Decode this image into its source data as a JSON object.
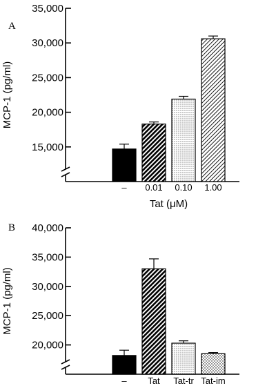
{
  "chart_data": [
    {
      "type": "bar",
      "panel_label": "A",
      "ylabel": "MCP-1 (pg/ml)",
      "xlabel": "Tat (μM)",
      "yticks": [
        15000,
        20000,
        25000,
        30000,
        35000
      ],
      "ytick_labels": [
        "15,000",
        "20,000",
        "25,000",
        "30,000",
        "35,000"
      ],
      "ylim": [
        10000,
        35000
      ],
      "axis_break": true,
      "categories": [
        "–",
        "0.01",
        "0.10",
        "1.00"
      ],
      "values": [
        14700,
        18300,
        21900,
        30600
      ],
      "errors": [
        700,
        300,
        400,
        400
      ],
      "patterns": [
        "solid",
        "dense-diagonal",
        "dots",
        "light-diagonal"
      ]
    },
    {
      "type": "bar",
      "panel_label": "B",
      "ylabel": "MCP-1 (pg/ml)",
      "xlabel": "",
      "yticks": [
        20000,
        25000,
        30000,
        35000,
        40000
      ],
      "ytick_labels": [
        "20,000",
        "25,000",
        "30,000",
        "35,000",
        "40,000"
      ],
      "ylim": [
        15000,
        40000
      ],
      "axis_break": true,
      "categories": [
        "–",
        "Tat",
        "Tat-tr",
        "Tat-im"
      ],
      "values": [
        18200,
        33000,
        20300,
        18500
      ],
      "errors": [
        900,
        1700,
        400,
        200
      ],
      "patterns": [
        "solid",
        "dense-diagonal",
        "dots",
        "sparse-dots"
      ]
    }
  ]
}
